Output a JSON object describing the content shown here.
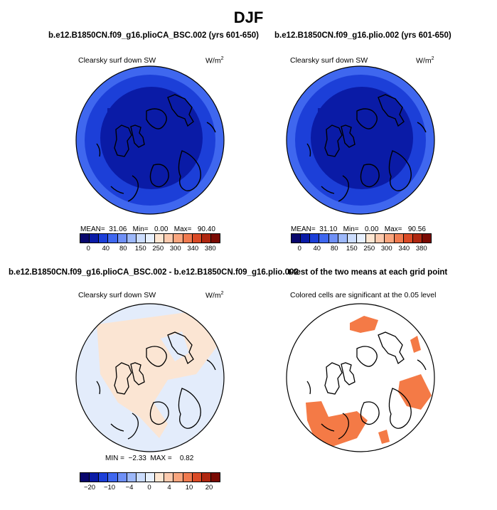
{
  "figure": {
    "title": "DJF",
    "panel1": {
      "case": "b.e12.B1850CN.f09_g16.plioCA_BSC.002 (yrs 601-650)",
      "variable": "Clearsky surf down SW",
      "units": "W/m",
      "units_sup": "2",
      "stats": {
        "mean_label": "MEAN=",
        "mean": "31.06",
        "min_label": "Min=",
        "min": "0.00",
        "max_label": "Max=",
        "max": "90.40"
      }
    },
    "panel2": {
      "case": "b.e12.B1850CN.f09_g16.plio.002 (yrs 601-650)",
      "variable": "Clearsky surf down SW",
      "units": "W/m",
      "units_sup": "2",
      "stats": {
        "mean_label": "MEAN=",
        "mean": "31.10",
        "min_label": "Min=",
        "min": "0.00",
        "max_label": "Max=",
        "max": "90.56"
      }
    },
    "panel3": {
      "case": "b.e12.B1850CN.f09_g16.plioCA_BSC.002 - b.e12.B1850CN.f09_g16.plio.002",
      "variable": "Clearsky surf down SW",
      "units": "W/m",
      "units_sup": "2",
      "stats": {
        "min_label": "MIN =",
        "min": "−2.33",
        "max_label": "MAX =",
        "max": "0.82"
      }
    },
    "panel4": {
      "title": "t-test of the two means at each grid point",
      "subtitle": "Colored cells are significant at the 0.05 level"
    },
    "colorbar_abs": {
      "colors": [
        "#08066c",
        "#0a1ba6",
        "#1c3fd8",
        "#3f67ef",
        "#6f90f6",
        "#9db8fa",
        "#cbdcfd",
        "#e7f0fe",
        "#fde6d2",
        "#fccaae",
        "#f9a57e",
        "#f07a4f",
        "#da4a26",
        "#b02710",
        "#7a0a03"
      ],
      "labels": [
        "0",
        "40",
        "80",
        "150",
        "250",
        "300",
        "340",
        "380"
      ]
    },
    "colorbar_diff": {
      "colors": [
        "#08066c",
        "#0a1ba6",
        "#1c3fd8",
        "#3f67ef",
        "#6f90f6",
        "#9db8fa",
        "#cbdcfd",
        "#e7f0fe",
        "#fde6d2",
        "#fccaae",
        "#f9a57e",
        "#f07a4f",
        "#da4a26",
        "#b02710",
        "#7a0a03"
      ],
      "labels": [
        "−20",
        "−10",
        "−4",
        "0",
        "4",
        "10",
        "20"
      ]
    }
  },
  "chart_data": [
    {
      "type": "heatmap",
      "title": "Clearsky surf down SW",
      "units": "W/m2",
      "projection": "polar stereographic (north)",
      "mean": 31.06,
      "min": 0.0,
      "max": 90.4,
      "colorbar_levels": [
        0,
        40,
        80,
        150,
        250,
        300,
        340,
        380
      ]
    },
    {
      "type": "heatmap",
      "title": "Clearsky surf down SW",
      "units": "W/m2",
      "projection": "polar stereographic (north)",
      "mean": 31.1,
      "min": 0.0,
      "max": 90.56,
      "colorbar_levels": [
        0,
        40,
        80,
        150,
        250,
        300,
        340,
        380
      ]
    },
    {
      "type": "heatmap",
      "title": "Clearsky surf down SW",
      "units": "W/m2",
      "projection": "polar stereographic (north)",
      "min": -2.33,
      "max": 0.82,
      "colorbar_levels": [
        -20,
        -10,
        -4,
        0,
        4,
        10,
        20
      ]
    },
    {
      "type": "heatmap",
      "title": "t-test of the two means at each grid point",
      "subtitle": "Colored cells are significant at the 0.05 level",
      "significance_level": 0.05
    }
  ]
}
